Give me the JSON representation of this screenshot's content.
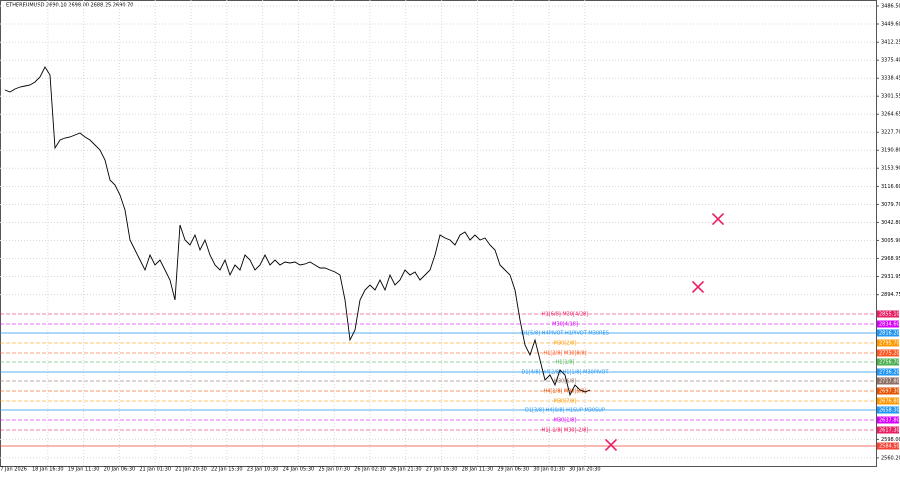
{
  "chart_data": {
    "type": "line",
    "title": "ETHEREUMUSD  2690.10 2698.00 2688.25 2690.70",
    "color": "#000000",
    "values": [
      3314.3,
      3310.2,
      3316.4,
      3320.5,
      3322.5,
      3324.6,
      3330.7,
      3341.0,
      3361.5,
      3345.1,
      3195.4,
      3211.8,
      3215.9,
      3218.0,
      3222.1,
      3226.2,
      3218.0,
      3211.8,
      3201.6,
      3191.3,
      3170.8,
      3129.8,
      3119.6,
      3099.1,
      3068.3,
      3006.8,
      2986.3,
      2965.8,
      2945.3,
      2976.1,
      2955.6,
      2965.8,
      2945.3,
      2924.8,
      2883.8,
      3037.6,
      3006.8,
      2996.6,
      3017.1,
      2986.3,
      3006.8,
      2976.1,
      2955.6,
      2945.3,
      2965.8,
      2935.1,
      2955.6,
      2945.3,
      2976.1,
      2965.8,
      2945.3,
      2955.6,
      2976.1,
      2955.6,
      2965.8,
      2955.6,
      2961.7,
      2959.7,
      2961.7,
      2955.6,
      2957.6,
      2961.7,
      2955.6,
      2949.4,
      2949.4,
      2945.3,
      2941.2,
      2935.1,
      2883.8,
      2801.8,
      2822.3,
      2883.8,
      2904.3,
      2914.6,
      2904.3,
      2924.8,
      2904.3,
      2935.1,
      2914.6,
      2924.8,
      2945.3,
      2935.1,
      2941.2,
      2924.8,
      2935.1,
      2945.3,
      2976.1,
      3017.1,
      3010.9,
      3006.8,
      2996.6,
      3017.1,
      3023.2,
      3006.8,
      3017.1,
      3006.8,
      3010.9,
      2996.6,
      2986.3,
      2955.6,
      2945.3,
      2935.1,
      2904.3,
      2842.8,
      2791.6,
      2771.1,
      2801.8,
      2760.8,
      2719.8,
      2730.1,
      2709.6,
      2740.3,
      2730.1,
      2689.1,
      2709.6,
      2699.3,
      2695.2,
      2699.3
    ],
    "x_labels": [
      "17 Jan 2026",
      "18 Jan 16:30",
      "19 Jan 11:30",
      "20 Jan 06:30",
      "21 Jan 01:30",
      "21 Jan 20:30",
      "22 Jan 15:30",
      "23 Jan 10:30",
      "24 Jan 05:30",
      "25 Jan 07:30",
      "26 Jan 02:30",
      "26 Jan 21:30",
      "27 Jan 16:30",
      "28 Jan 11:30",
      "29 Jan 06:30",
      "30 Jan 01:30",
      "30 Jan 20:30"
    ],
    "ylim": [
      2543.5,
      3498.8
    ],
    "yticks": [
      {
        "value": 3486.5,
        "label": "3486.50"
      },
      {
        "value": 3449.6,
        "label": "3449.60"
      },
      3412.25,
      {
        "value": 3375.4,
        "label": "3375.40"
      },
      3338.45,
      3301.55,
      3264.65,
      {
        "value": 3227.7,
        "label": "3227.70"
      },
      {
        "value": 3190.8,
        "label": "3190.80"
      },
      {
        "value": 3153.9,
        "label": "3153.90"
      },
      {
        "value": 3116.6,
        "label": "3116.60"
      },
      {
        "value": 3079.7,
        "label": "3079.70"
      },
      {
        "value": 3042.8,
        "label": "3042.80"
      },
      {
        "value": 3005.9,
        "label": "3005.90"
      },
      2968.95,
      2931.95,
      2894.75,
      {
        "value": 2598.0,
        "label": "2598.00"
      },
      {
        "value": 2560.2,
        "label": "2560.20"
      }
    ],
    "grid": true,
    "levels": [
      {
        "name": "H1[6/8] M30[4/28]",
        "value": 2855.1,
        "label": "2855.10",
        "color": "#e91e63"
      },
      {
        "name": "M30[4/18]",
        "value": 2834.6,
        "label": "2834.60",
        "color": "#d500f9"
      },
      {
        "name": "D1[5/8] H4PIVOT H1PIVOT M30RES",
        "value": 2816.2,
        "label": "2816.20",
        "color": "#2196f3"
      },
      {
        "name": "M30[2/8]",
        "value": 2795.7,
        "label": "2795.70",
        "color": "#ff9800"
      },
      {
        "name": "H1[2/8] M30[8/8]",
        "value": 2775.2,
        "label": "2775.20",
        "color": "#ff5722"
      },
      {
        "name": "H1[1/8]",
        "value": 2756.7,
        "label": "2756.70",
        "color": "#4caf50"
      },
      {
        "name": "D1[4/8] H4[2/8] H1[1/8] M30PIVOT",
        "value": 2736.2,
        "label": "2736.20",
        "color": "#2196f3"
      },
      {
        "name": "M30[6/8]",
        "value": 2717.8,
        "label": "2717.80",
        "color": "#8d6e63"
      },
      {
        "name": "H4[1/8] M30[5/8]",
        "value": 2697.3,
        "label": "2697.30",
        "color": "#e65100"
      },
      {
        "name": "M30[7/8]",
        "value": 2676.8,
        "label": "2676.80",
        "color": "#ff9800"
      },
      {
        "name": "D1[3/8] H4[0/8] H1SUP M30SUP",
        "value": 2658.3,
        "label": "2658.30",
        "color": "#2196f3"
      },
      {
        "name": "M30[1/8]",
        "value": 2637.8,
        "label": "2637.80",
        "color": "#d500f9"
      },
      {
        "name": "H1[-1/8] M30[-2/8]",
        "value": 2617.3,
        "label": "2617.30",
        "color": "#e91e63"
      },
      {
        "value": 2584.5,
        "label": "2584.50",
        "color": "#f44336"
      }
    ],
    "markers": [
      {
        "value": 3049.8,
        "color": "#e91e63"
      },
      {
        "value": 2910.5,
        "color": "#e91e63"
      },
      {
        "value": 2586.6,
        "color": "#e91e63"
      }
    ]
  }
}
